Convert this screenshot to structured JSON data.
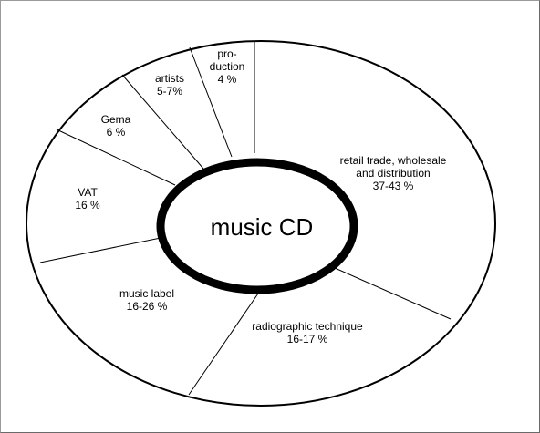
{
  "chart_data": {
    "type": "pie",
    "variant": "donut",
    "center_label": "music CD",
    "slices": [
      {
        "label_lines": [
          "retail trade, wholesale",
          "and distribution",
          "37-43 %"
        ]
      },
      {
        "label_lines": [
          "radiographic technique",
          "16-17 %"
        ]
      },
      {
        "label_lines": [
          "music label",
          "16-26 %"
        ]
      },
      {
        "label_lines": [
          "VAT",
          "16 %"
        ]
      },
      {
        "label_lines": [
          "Gema",
          "6 %"
        ]
      },
      {
        "label_lines": [
          "artists",
          "5-7%"
        ]
      },
      {
        "label_lines": [
          "pro-",
          "duction",
          "4 %"
        ]
      }
    ],
    "legend": "none",
    "grid": false
  },
  "colors": {
    "fill": "#ffffff",
    "stroke": "#000000",
    "frame": "#8c8c8c"
  }
}
